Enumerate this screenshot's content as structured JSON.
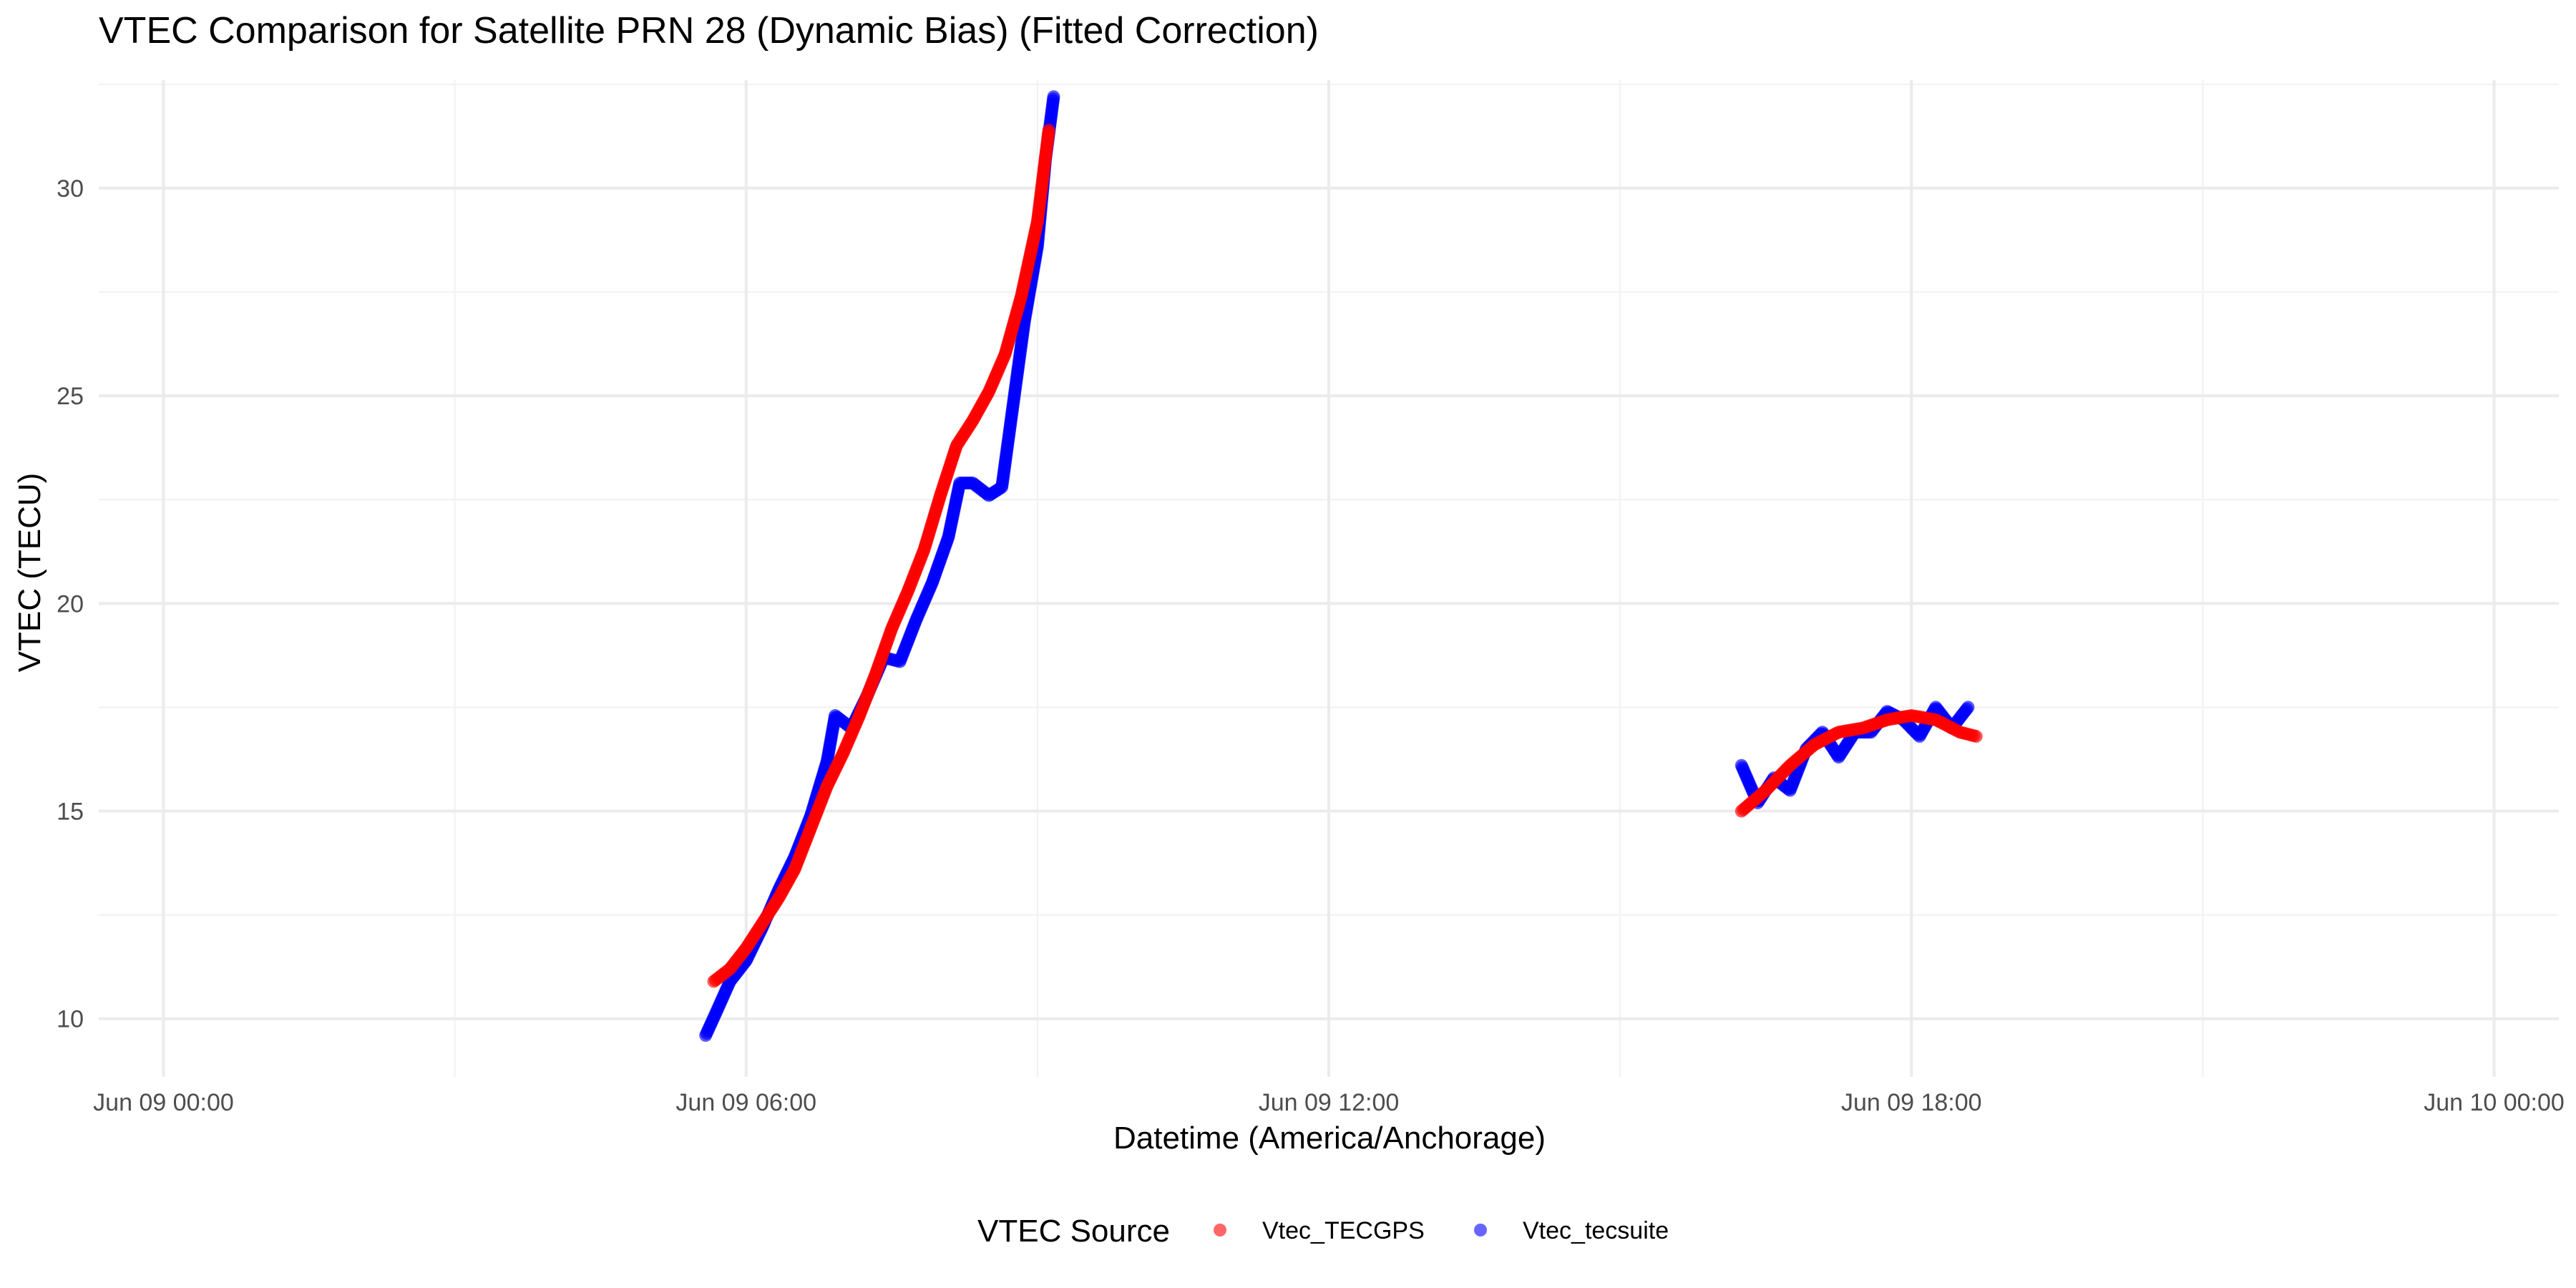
{
  "chart_data": {
    "type": "scatter",
    "title": "VTEC Comparison for Satellite PRN 28 (Dynamic Bias)   (Fitted Correction)",
    "xlabel": "Datetime (America/Anchorage)",
    "ylabel": "VTEC (TECU)",
    "x_ticks": [
      "Jun 09 00:00",
      "Jun 09 06:00",
      "Jun 09 12:00",
      "Jun 09 18:00",
      "Jun 10 00:00"
    ],
    "y_ticks": [
      "10",
      "15",
      "20",
      "25",
      "30"
    ],
    "xlim": [
      "2024-06-08T23:20",
      "2024-06-10T00:40"
    ],
    "ylim": [
      8.6,
      32.6
    ],
    "grid": true,
    "legend": {
      "title": "VTEC Source",
      "position": "bottom"
    },
    "series": [
      {
        "name": "Vtec_TECGPS",
        "color": "#ff0000",
        "points": [
          [
            "2024-06-09T05:40",
            10.9
          ],
          [
            "2024-06-09T05:50",
            11.2
          ],
          [
            "2024-06-09T06:00",
            11.7
          ],
          [
            "2024-06-09T06:10",
            12.3
          ],
          [
            "2024-06-09T06:20",
            12.9
          ],
          [
            "2024-06-09T06:30",
            13.6
          ],
          [
            "2024-06-09T06:40",
            14.6
          ],
          [
            "2024-06-09T06:50",
            15.6
          ],
          [
            "2024-06-09T07:00",
            16.4
          ],
          [
            "2024-06-09T07:10",
            17.3
          ],
          [
            "2024-06-09T07:20",
            18.3
          ],
          [
            "2024-06-09T07:30",
            19.4
          ],
          [
            "2024-06-09T07:40",
            20.3
          ],
          [
            "2024-06-09T07:50",
            21.3
          ],
          [
            "2024-06-09T08:00",
            22.6
          ],
          [
            "2024-06-09T08:10",
            23.8
          ],
          [
            "2024-06-09T08:20",
            24.4
          ],
          [
            "2024-06-09T08:30",
            25.1
          ],
          [
            "2024-06-09T08:40",
            26.0
          ],
          [
            "2024-06-09T08:50",
            27.4
          ],
          [
            "2024-06-09T09:00",
            29.2
          ],
          [
            "2024-06-09T09:07",
            31.4
          ],
          [
            "2024-06-09T16:15",
            15.0
          ],
          [
            "2024-06-09T16:30",
            15.5
          ],
          [
            "2024-06-09T16:45",
            16.1
          ],
          [
            "2024-06-09T17:00",
            16.6
          ],
          [
            "2024-06-09T17:15",
            16.9
          ],
          [
            "2024-06-09T17:30",
            17.0
          ],
          [
            "2024-06-09T17:45",
            17.2
          ],
          [
            "2024-06-09T18:00",
            17.3
          ],
          [
            "2024-06-09T18:15",
            17.2
          ],
          [
            "2024-06-09T18:30",
            16.9
          ],
          [
            "2024-06-09T18:40",
            16.8
          ]
        ]
      },
      {
        "name": "Vtec_tecsuite",
        "color": "#0000ff",
        "points": [
          [
            "2024-06-09T05:35",
            9.6
          ],
          [
            "2024-06-09T05:42",
            10.2
          ],
          [
            "2024-06-09T05:50",
            10.9
          ],
          [
            "2024-06-09T06:00",
            11.4
          ],
          [
            "2024-06-09T06:10",
            12.2
          ],
          [
            "2024-06-09T06:20",
            13.1
          ],
          [
            "2024-06-09T06:30",
            13.9
          ],
          [
            "2024-06-09T06:40",
            14.9
          ],
          [
            "2024-06-09T06:50",
            16.2
          ],
          [
            "2024-06-09T06:55",
            17.3
          ],
          [
            "2024-06-09T07:05",
            17.0
          ],
          [
            "2024-06-09T07:15",
            17.8
          ],
          [
            "2024-06-09T07:25",
            18.7
          ],
          [
            "2024-06-09T07:35",
            18.6
          ],
          [
            "2024-06-09T07:45",
            19.6
          ],
          [
            "2024-06-09T07:55",
            20.5
          ],
          [
            "2024-06-09T08:05",
            21.6
          ],
          [
            "2024-06-09T08:12",
            22.9
          ],
          [
            "2024-06-09T08:20",
            22.9
          ],
          [
            "2024-06-09T08:30",
            22.6
          ],
          [
            "2024-06-09T08:38",
            22.8
          ],
          [
            "2024-06-09T08:45",
            24.8
          ],
          [
            "2024-06-09T08:52",
            26.8
          ],
          [
            "2024-06-09T09:00",
            28.6
          ],
          [
            "2024-06-09T09:05",
            30.7
          ],
          [
            "2024-06-09T09:10",
            32.2
          ],
          [
            "2024-06-09T16:15",
            16.1
          ],
          [
            "2024-06-09T16:25",
            15.2
          ],
          [
            "2024-06-09T16:35",
            15.8
          ],
          [
            "2024-06-09T16:45",
            15.5
          ],
          [
            "2024-06-09T16:55",
            16.5
          ],
          [
            "2024-06-09T17:05",
            16.9
          ],
          [
            "2024-06-09T17:15",
            16.3
          ],
          [
            "2024-06-09T17:25",
            16.9
          ],
          [
            "2024-06-09T17:35",
            16.9
          ],
          [
            "2024-06-09T17:45",
            17.4
          ],
          [
            "2024-06-09T17:55",
            17.2
          ],
          [
            "2024-06-09T18:05",
            16.8
          ],
          [
            "2024-06-09T18:15",
            17.5
          ],
          [
            "2024-06-09T18:25",
            17.0
          ],
          [
            "2024-06-09T18:35",
            17.5
          ]
        ]
      }
    ]
  }
}
